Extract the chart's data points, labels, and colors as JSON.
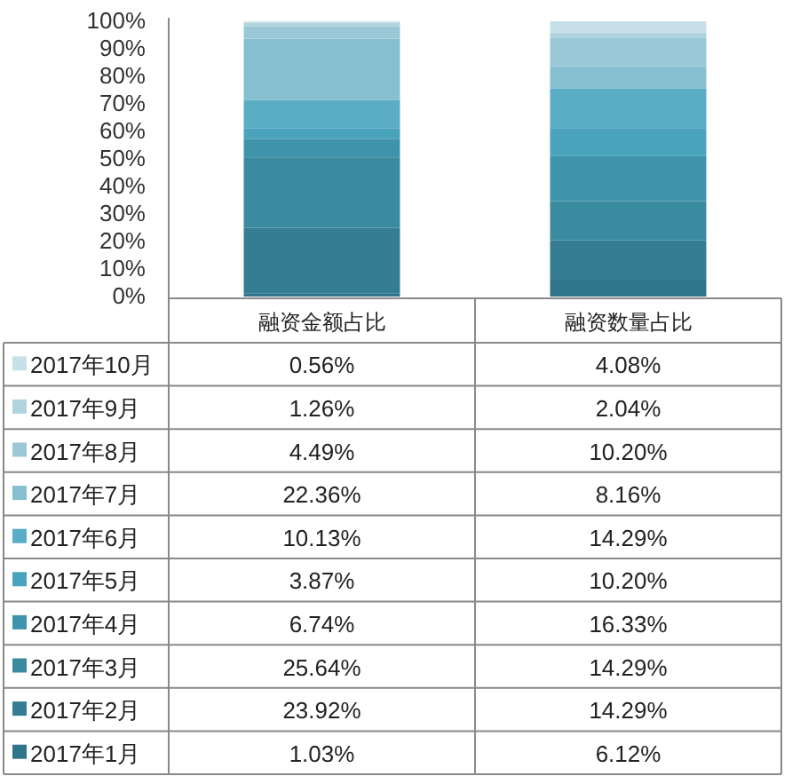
{
  "chart_data": {
    "type": "bar",
    "stacked": true,
    "categories": [
      "融资金额占比",
      "融资数量占比"
    ],
    "series": [
      {
        "name": "2017年1月",
        "color": "#2f7488",
        "values": [
          1.03,
          6.12
        ],
        "value_labels": [
          "1.03%",
          "6.12%"
        ]
      },
      {
        "name": "2017年2月",
        "color": "#357d92",
        "values": [
          23.92,
          14.29
        ],
        "value_labels": [
          "23.92%",
          "14.29%"
        ]
      },
      {
        "name": "2017年3月",
        "color": "#3a8aa0",
        "values": [
          25.64,
          14.29
        ],
        "value_labels": [
          "25.64%",
          "14.29%"
        ]
      },
      {
        "name": "2017年4月",
        "color": "#3f93aa",
        "values": [
          6.74,
          16.33
        ],
        "value_labels": [
          "6.74%",
          "16.33%"
        ]
      },
      {
        "name": "2017年5月",
        "color": "#4aa3bc",
        "values": [
          3.87,
          10.2
        ],
        "value_labels": [
          "3.87%",
          "10.20%"
        ]
      },
      {
        "name": "2017年6月",
        "color": "#5aadc4",
        "values": [
          10.13,
          14.29
        ],
        "value_labels": [
          "10.13%",
          "14.29%"
        ]
      },
      {
        "name": "2017年7月",
        "color": "#86bfd0",
        "values": [
          22.36,
          8.16
        ],
        "value_labels": [
          "22.36%",
          "8.16%"
        ]
      },
      {
        "name": "2017年8月",
        "color": "#9ac8d6",
        "values": [
          4.49,
          10.2
        ],
        "value_labels": [
          "4.49%",
          "10.20%"
        ]
      },
      {
        "name": "2017年9月",
        "color": "#b0d3de",
        "values": [
          1.26,
          2.04
        ],
        "value_labels": [
          "1.26%",
          "2.04%"
        ]
      },
      {
        "name": "2017年10月",
        "color": "#c8e0e8",
        "values": [
          0.56,
          4.08
        ],
        "value_labels": [
          "0.56%",
          "4.08%"
        ]
      }
    ],
    "ylim": [
      0,
      100
    ],
    "yticks": [
      {
        "value": 0,
        "label": "0%"
      },
      {
        "value": 10,
        "label": "10%"
      },
      {
        "value": 20,
        "label": "20%"
      },
      {
        "value": 30,
        "label": "30%"
      },
      {
        "value": 40,
        "label": "40%"
      },
      {
        "value": 50,
        "label": "50%"
      },
      {
        "value": 60,
        "label": "60%"
      },
      {
        "value": 70,
        "label": "70%"
      },
      {
        "value": 80,
        "label": "80%"
      },
      {
        "value": 90,
        "label": "90%"
      },
      {
        "value": 100,
        "label": "100%"
      }
    ],
    "legend": "bottom"
  }
}
